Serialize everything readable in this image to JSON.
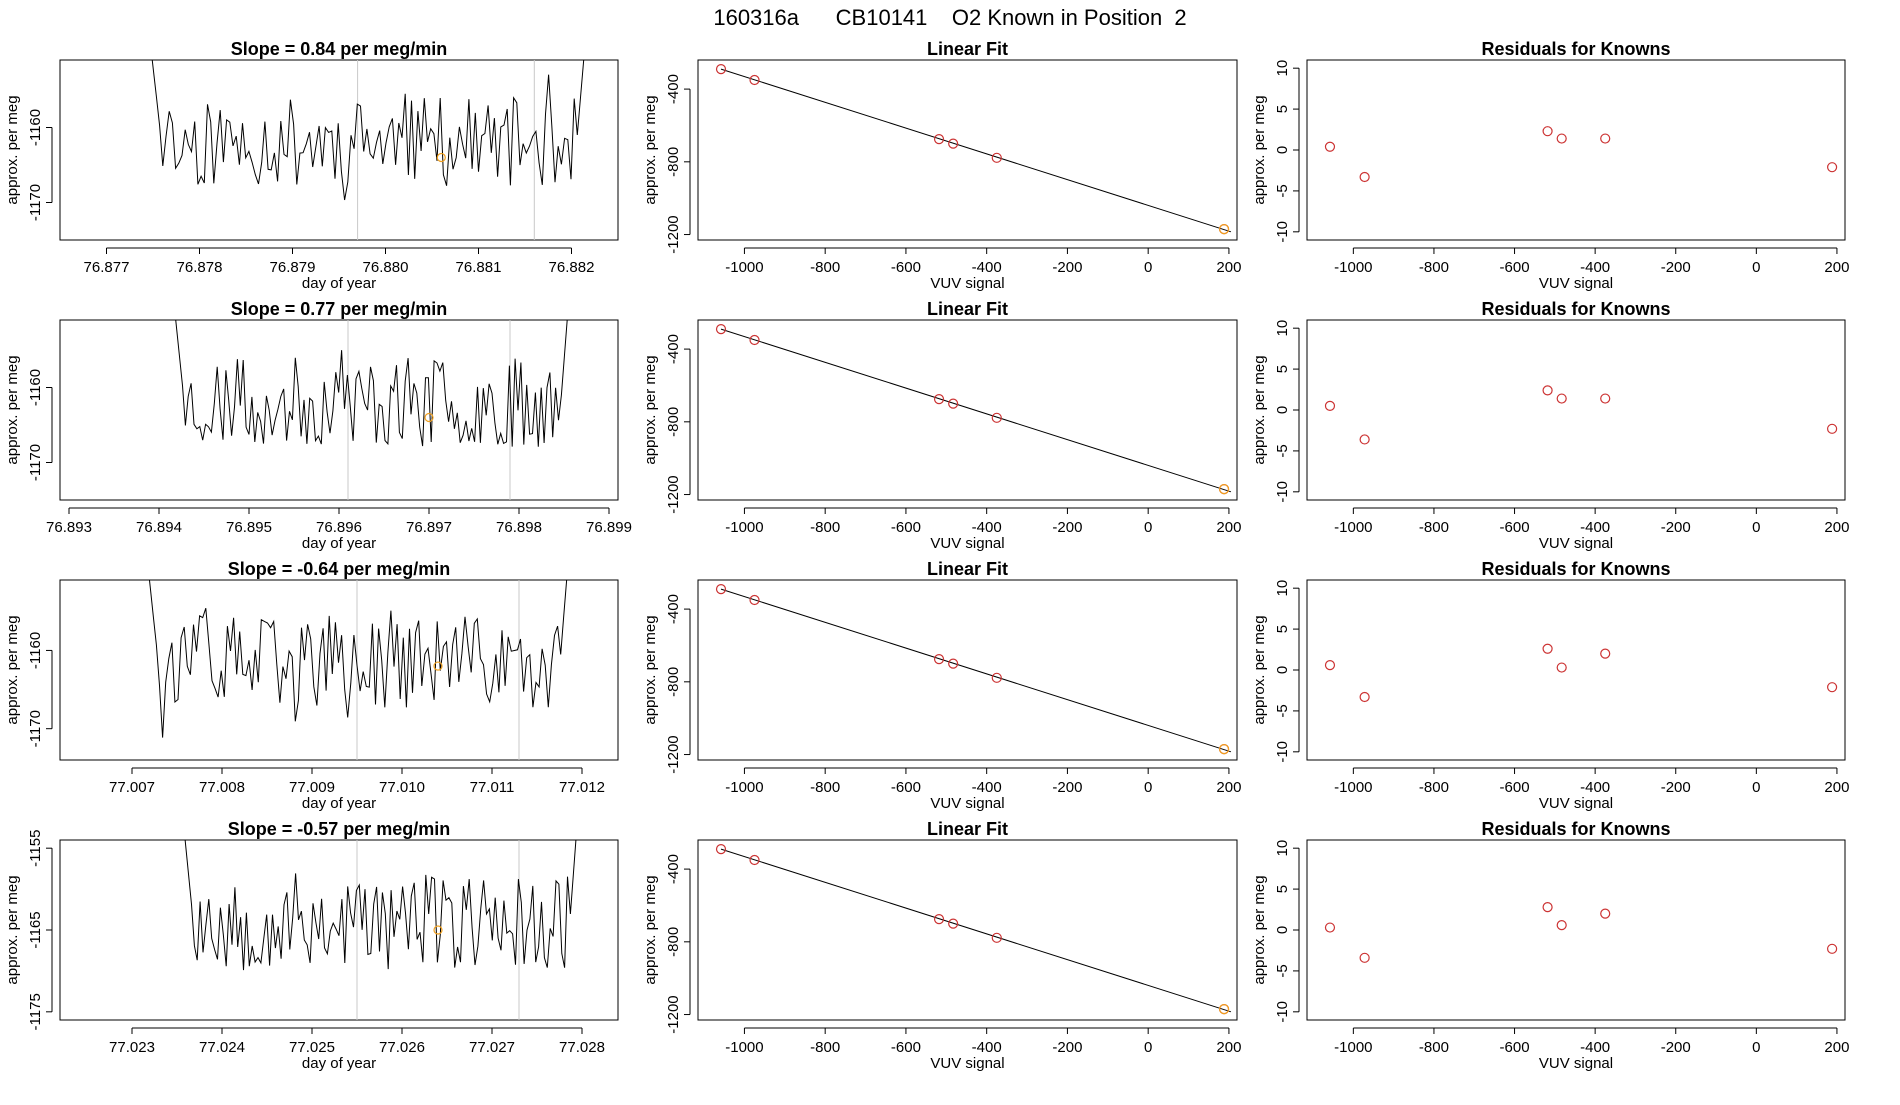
{
  "figure": {
    "title": "160316a      CB10141    O2 Known in Position  2"
  },
  "colors": {
    "series_line": "#000000",
    "marker_red": "#cc3333",
    "marker_orange": "#f0a020",
    "divider": "#c8c8c8"
  },
  "chart_data": [
    {
      "type": "line",
      "row": 1,
      "title": "Slope =  0.84  per meg/min",
      "xlabel": "day of year",
      "ylabel": "approx. per meg",
      "xlim": [
        76.8765,
        76.8825
      ],
      "ylim": [
        -1175,
        -1151
      ],
      "xticks": [
        "76.877",
        "76.878",
        "76.879",
        "76.880",
        "76.881",
        "76.882"
      ],
      "yticks": [
        "-1160",
        "-1170"
      ],
      "xtick_values": [
        76.877,
        76.878,
        76.879,
        76.88,
        76.881,
        76.882
      ],
      "ytick_values": [
        -1160,
        -1170
      ],
      "x_start": 76.8774,
      "x_end": 76.8822,
      "dividers": [
        76.8797,
        76.8816
      ],
      "marker": [
        76.8806,
        -1164
      ],
      "seed": 11
    },
    {
      "type": "scatter",
      "row": 1,
      "title": "Linear Fit",
      "xlabel": "VUV signal",
      "ylabel": "approx. per meg",
      "xlim": [
        -1115,
        220
      ],
      "ylim": [
        -1230,
        -240
      ],
      "xticks": [
        "-1000",
        "-800",
        "-600",
        "-400",
        "-200",
        "0",
        "200"
      ],
      "yticks": [
        "-400",
        "-800",
        "-1200"
      ],
      "xtick_values": [
        -1000,
        -800,
        -600,
        -400,
        -200,
        0,
        200
      ],
      "ytick_values": [
        -400,
        -800,
        -1200
      ],
      "points": [
        [
          -1058,
          -290
        ],
        [
          -975,
          -350
        ],
        [
          -518,
          -675
        ],
        [
          -483,
          -700
        ],
        [
          -375,
          -778
        ],
        [
          188,
          -1170
        ]
      ],
      "fit_line": [
        [
          -1058,
          -290
        ],
        [
          205,
          -1185
        ]
      ],
      "known_point": [
        188,
        -1170
      ]
    },
    {
      "type": "scatter",
      "row": 1,
      "title": "Residuals for Knowns",
      "xlabel": "VUV signal",
      "ylabel": "approx. per meg",
      "xlim": [
        -1115,
        220
      ],
      "ylim": [
        -11,
        11
      ],
      "xticks": [
        "-1000",
        "-800",
        "-600",
        "-400",
        "-200",
        "0",
        "200"
      ],
      "yticks": [
        "10",
        "5",
        "0",
        "-5",
        "-10"
      ],
      "xtick_values": [
        -1000,
        -800,
        -600,
        -400,
        -200,
        0,
        200
      ],
      "ytick_values": [
        10,
        5,
        0,
        -5,
        -10
      ],
      "points": [
        [
          -1058,
          0.4
        ],
        [
          -972,
          -3.3
        ],
        [
          -518,
          2.3
        ],
        [
          -483,
          1.4
        ],
        [
          -375,
          1.4
        ],
        [
          188,
          -2.1
        ]
      ]
    },
    {
      "type": "line",
      "row": 2,
      "title": "Slope =  0.77  per meg/min",
      "xlabel": "day of year",
      "ylabel": "approx. per meg",
      "xlim": [
        76.8929,
        76.8991
      ],
      "ylim": [
        -1175,
        -1151
      ],
      "xticks": [
        "76.893",
        "76.894",
        "76.895",
        "76.896",
        "76.897",
        "76.898",
        "76.899"
      ],
      "yticks": [
        "-1160",
        "-1170"
      ],
      "xtick_values": [
        76.893,
        76.894,
        76.895,
        76.896,
        76.897,
        76.898,
        76.899
      ],
      "ytick_values": [
        -1160,
        -1170
      ],
      "x_start": 76.8941,
      "x_end": 76.8986,
      "dividers": [
        76.8961,
        76.8979
      ],
      "marker": [
        76.897,
        -1164
      ],
      "seed": 23
    },
    {
      "type": "scatter",
      "row": 2,
      "title": "Linear Fit",
      "xlabel": "VUV signal",
      "ylabel": "approx. per meg",
      "xlim": [
        -1115,
        220
      ],
      "ylim": [
        -1230,
        -240
      ],
      "xticks": [
        "-1000",
        "-800",
        "-600",
        "-400",
        "-200",
        "0",
        "200"
      ],
      "yticks": [
        "-400",
        "-800",
        "-1200"
      ],
      "xtick_values": [
        -1000,
        -800,
        -600,
        -400,
        -200,
        0,
        200
      ],
      "ytick_values": [
        -400,
        -800,
        -1200
      ],
      "points": [
        [
          -1058,
          -290
        ],
        [
          -975,
          -350
        ],
        [
          -518,
          -675
        ],
        [
          -483,
          -700
        ],
        [
          -375,
          -778
        ],
        [
          188,
          -1170
        ]
      ],
      "fit_line": [
        [
          -1058,
          -290
        ],
        [
          205,
          -1185
        ]
      ],
      "known_point": [
        188,
        -1170
      ]
    },
    {
      "type": "scatter",
      "row": 2,
      "title": "Residuals for Knowns",
      "xlabel": "VUV signal",
      "ylabel": "approx. per meg",
      "xlim": [
        -1115,
        220
      ],
      "ylim": [
        -11,
        11
      ],
      "xticks": [
        "-1000",
        "-800",
        "-600",
        "-400",
        "-200",
        "0",
        "200"
      ],
      "yticks": [
        "10",
        "5",
        "0",
        "-5",
        "-10"
      ],
      "xtick_values": [
        -1000,
        -800,
        -600,
        -400,
        -200,
        0,
        200
      ],
      "ytick_values": [
        10,
        5,
        0,
        -5,
        -10
      ],
      "points": [
        [
          -1058,
          0.5
        ],
        [
          -972,
          -3.6
        ],
        [
          -518,
          2.4
        ],
        [
          -483,
          1.4
        ],
        [
          -375,
          1.4
        ],
        [
          188,
          -2.3
        ]
      ]
    },
    {
      "type": "line",
      "row": 3,
      "title": "Slope =  -0.64  per meg/min",
      "xlabel": "day of year",
      "ylabel": "approx. per meg",
      "xlim": [
        77.0062,
        77.0124
      ],
      "ylim": [
        -1174,
        -1151
      ],
      "xticks": [
        "77.007",
        "77.008",
        "77.009",
        "77.010",
        "77.011",
        "77.012"
      ],
      "yticks": [
        "-1160",
        "-1170"
      ],
      "xtick_values": [
        77.007,
        77.008,
        77.009,
        77.01,
        77.011,
        77.012
      ],
      "ytick_values": [
        -1160,
        -1170
      ],
      "x_start": 77.0071,
      "x_end": 77.0119,
      "dividers": [
        77.0095,
        77.0113
      ],
      "marker": [
        77.0104,
        -1162
      ],
      "seed": 37
    },
    {
      "type": "scatter",
      "row": 3,
      "title": "Linear Fit",
      "xlabel": "VUV signal",
      "ylabel": "approx. per meg",
      "xlim": [
        -1115,
        220
      ],
      "ylim": [
        -1230,
        -240
      ],
      "xticks": [
        "-1000",
        "-800",
        "-600",
        "-400",
        "-200",
        "0",
        "200"
      ],
      "yticks": [
        "-400",
        "-800",
        "-1200"
      ],
      "xtick_values": [
        -1000,
        -800,
        -600,
        -400,
        -200,
        0,
        200
      ],
      "ytick_values": [
        -400,
        -800,
        -1200
      ],
      "points": [
        [
          -1058,
          -290
        ],
        [
          -975,
          -350
        ],
        [
          -518,
          -675
        ],
        [
          -483,
          -700
        ],
        [
          -375,
          -778
        ],
        [
          188,
          -1170
        ]
      ],
      "fit_line": [
        [
          -1058,
          -290
        ],
        [
          205,
          -1185
        ]
      ],
      "known_point": [
        188,
        -1170
      ]
    },
    {
      "type": "scatter",
      "row": 3,
      "title": "Residuals for Knowns",
      "xlabel": "VUV signal",
      "ylabel": "approx. per meg",
      "xlim": [
        -1115,
        220
      ],
      "ylim": [
        -11,
        11
      ],
      "xticks": [
        "-1000",
        "-800",
        "-600",
        "-400",
        "-200",
        "0",
        "200"
      ],
      "yticks": [
        "10",
        "5",
        "0",
        "-5",
        "-10"
      ],
      "xtick_values": [
        -1000,
        -800,
        -600,
        -400,
        -200,
        0,
        200
      ],
      "ytick_values": [
        10,
        5,
        0,
        -5,
        -10
      ],
      "points": [
        [
          -1058,
          0.6
        ],
        [
          -972,
          -3.3
        ],
        [
          -518,
          2.6
        ],
        [
          -483,
          0.3
        ],
        [
          -375,
          2.0
        ],
        [
          188,
          -2.1
        ]
      ]
    },
    {
      "type": "line",
      "row": 4,
      "title": "Slope =  -0.57  per meg/min",
      "xlabel": "day of year",
      "ylabel": "approx. per meg",
      "xlim": [
        77.0222,
        77.0284
      ],
      "ylim": [
        -1176,
        -1154
      ],
      "xticks": [
        "77.023",
        "77.024",
        "77.025",
        "77.026",
        "77.027",
        "77.028"
      ],
      "yticks": [
        "-1155",
        "-1165",
        "-1175"
      ],
      "xtick_values": [
        77.023,
        77.024,
        77.025,
        77.026,
        77.027,
        77.028
      ],
      "ytick_values": [
        -1155,
        -1165,
        -1175
      ],
      "x_start": 77.0235,
      "x_end": 77.028,
      "dividers": [
        77.0255,
        77.0273
      ],
      "marker": [
        77.0264,
        -1165
      ],
      "seed": 53
    },
    {
      "type": "scatter",
      "row": 4,
      "title": "Linear Fit",
      "xlabel": "VUV signal",
      "ylabel": "approx. per meg",
      "xlim": [
        -1115,
        220
      ],
      "ylim": [
        -1230,
        -240
      ],
      "xticks": [
        "-1000",
        "-800",
        "-600",
        "-400",
        "-200",
        "0",
        "200"
      ],
      "yticks": [
        "-400",
        "-800",
        "-1200"
      ],
      "xtick_values": [
        -1000,
        -800,
        -600,
        -400,
        -200,
        0,
        200
      ],
      "ytick_values": [
        -400,
        -800,
        -1200
      ],
      "points": [
        [
          -1058,
          -290
        ],
        [
          -975,
          -350
        ],
        [
          -518,
          -675
        ],
        [
          -483,
          -700
        ],
        [
          -375,
          -778
        ],
        [
          188,
          -1170
        ]
      ],
      "fit_line": [
        [
          -1058,
          -290
        ],
        [
          205,
          -1185
        ]
      ],
      "known_point": [
        188,
        -1170
      ]
    },
    {
      "type": "scatter",
      "row": 4,
      "title": "Residuals for Knowns",
      "xlabel": "VUV signal",
      "ylabel": "approx. per meg",
      "xlim": [
        -1115,
        220
      ],
      "ylim": [
        -11,
        11
      ],
      "xticks": [
        "-1000",
        "-800",
        "-600",
        "-400",
        "-200",
        "0",
        "200"
      ],
      "yticks": [
        "10",
        "5",
        "0",
        "-5",
        "-10"
      ],
      "xtick_values": [
        -1000,
        -800,
        -600,
        -400,
        -200,
        0,
        200
      ],
      "ytick_values": [
        10,
        5,
        0,
        -5,
        -10
      ],
      "points": [
        [
          -1058,
          0.3
        ],
        [
          -972,
          -3.4
        ],
        [
          -518,
          2.8
        ],
        [
          -483,
          0.6
        ],
        [
          -375,
          2.0
        ],
        [
          188,
          -2.3
        ]
      ]
    }
  ]
}
